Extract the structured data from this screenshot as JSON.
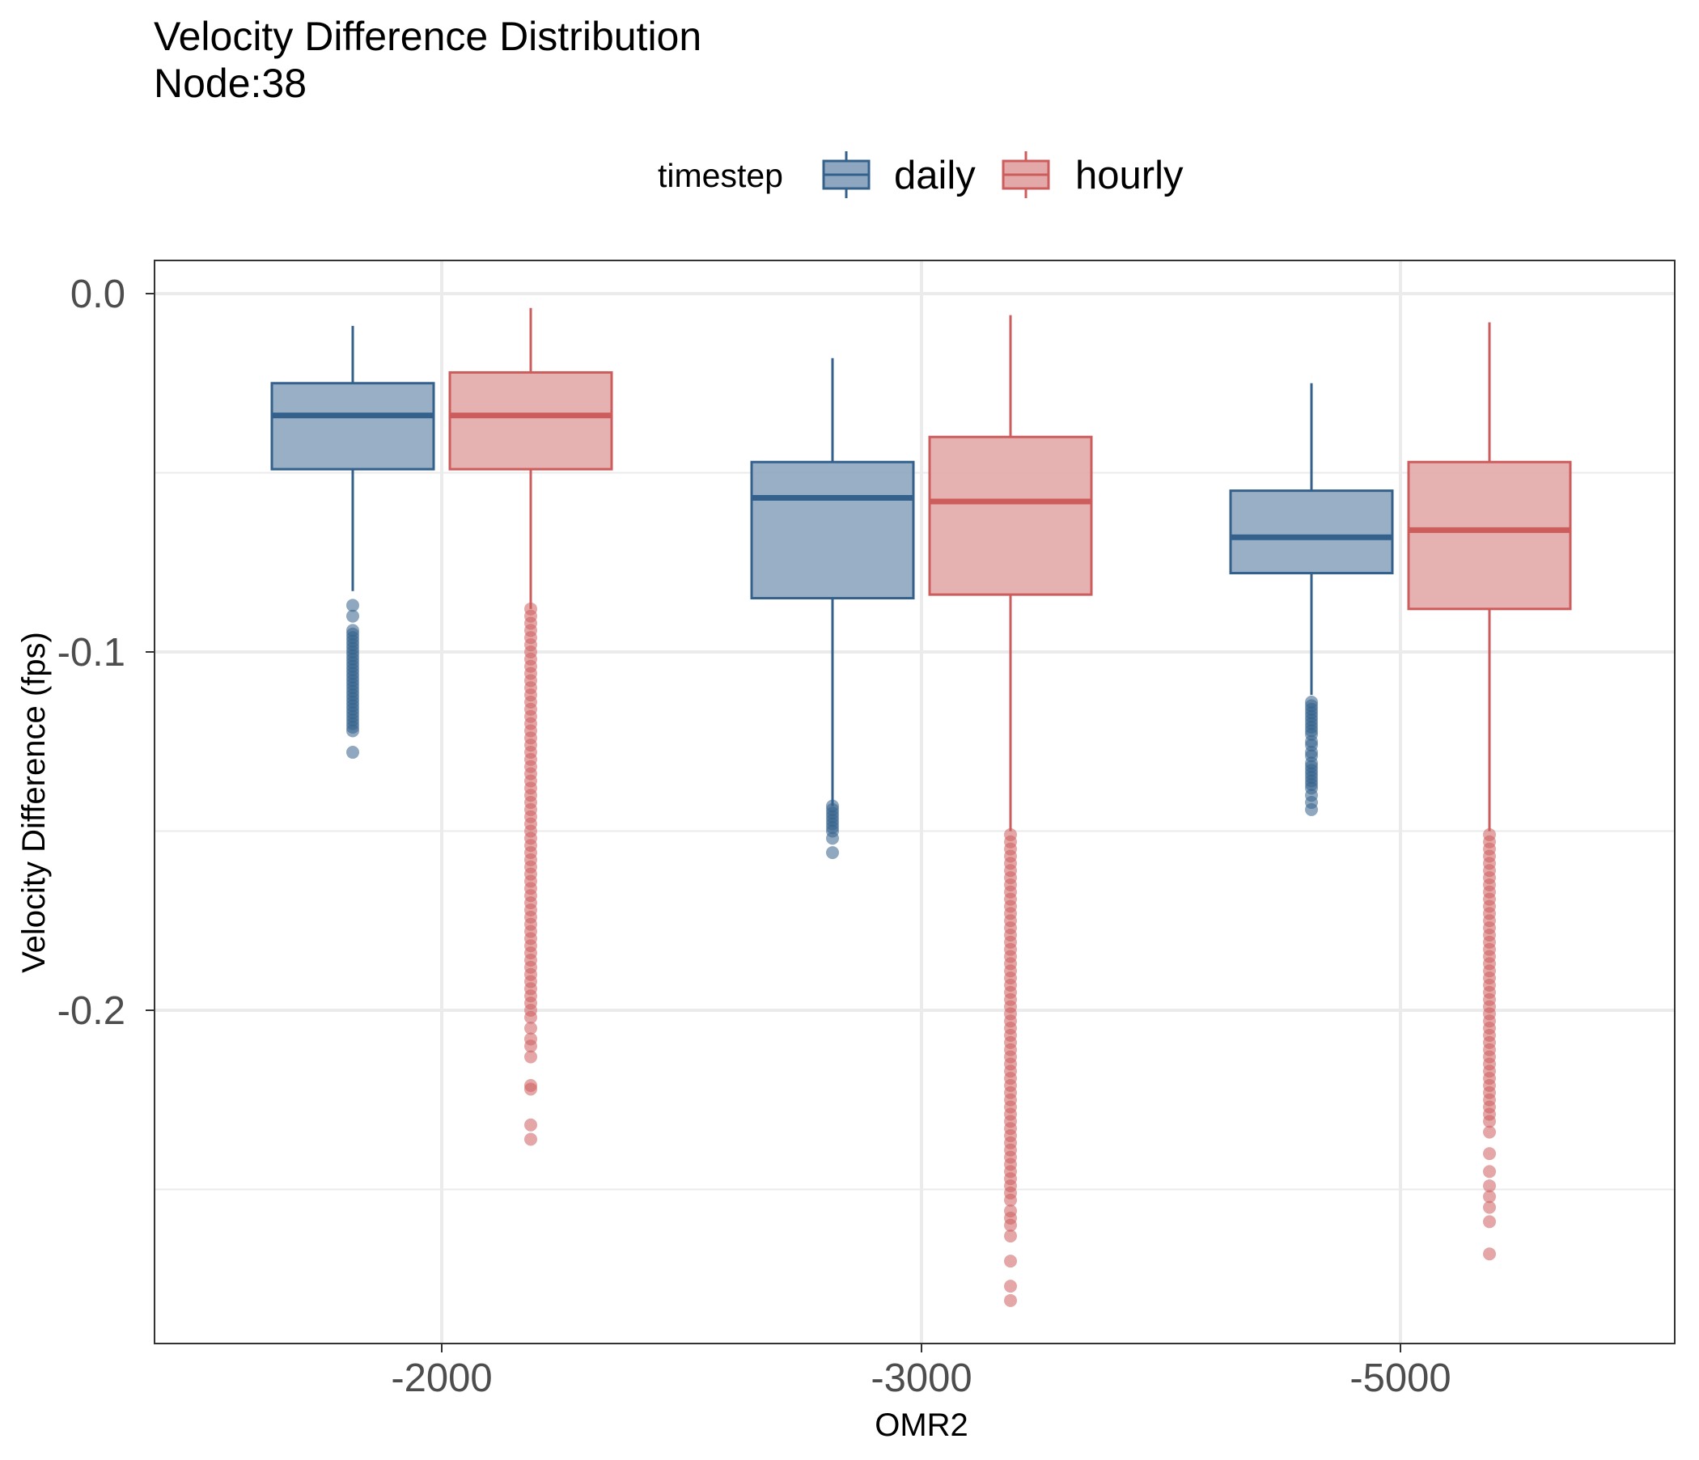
{
  "chart_data": {
    "type": "box",
    "title": "Velocity Difference Distribution",
    "subtitle": "Node:38",
    "xlabel": "OMR2",
    "ylabel": "Velocity Difference (fps)",
    "categories": [
      "-2000",
      "-3000",
      "-5000"
    ],
    "y_ticks": [
      "0.0",
      "-0.1",
      "-0.2"
    ],
    "ylim": [
      -0.293,
      0.009
    ],
    "grid": true,
    "legend": {
      "title": "timestep",
      "position": "top",
      "entries": [
        "daily",
        "hourly"
      ]
    },
    "series": [
      {
        "name": "daily",
        "color": "#33618b",
        "fill": "#8ea6c0",
        "boxes": [
          {
            "category": "-2000",
            "whisker_high": -0.009,
            "q3": -0.025,
            "median": -0.034,
            "q1": -0.049,
            "whisker_low": -0.083,
            "outliers": [
              -0.087,
              -0.09,
              -0.094,
              -0.095,
              -0.096,
              -0.097,
              -0.098,
              -0.099,
              -0.1,
              -0.101,
              -0.102,
              -0.103,
              -0.104,
              -0.105,
              -0.106,
              -0.107,
              -0.108,
              -0.109,
              -0.11,
              -0.111,
              -0.112,
              -0.113,
              -0.114,
              -0.115,
              -0.116,
              -0.117,
              -0.118,
              -0.119,
              -0.12,
              -0.121,
              -0.122,
              -0.128
            ]
          },
          {
            "category": "-3000",
            "whisker_high": -0.018,
            "q3": -0.047,
            "median": -0.057,
            "q1": -0.085,
            "whisker_low": -0.143,
            "outliers": [
              -0.143,
              -0.144,
              -0.145,
              -0.146,
              -0.147,
              -0.148,
              -0.149,
              -0.15,
              -0.152,
              -0.156
            ]
          },
          {
            "category": "-5000",
            "whisker_high": -0.025,
            "q3": -0.055,
            "median": -0.068,
            "q1": -0.078,
            "whisker_low": -0.112,
            "outliers": [
              -0.114,
              -0.115,
              -0.116,
              -0.117,
              -0.118,
              -0.119,
              -0.12,
              -0.121,
              -0.122,
              -0.123,
              -0.125,
              -0.126,
              -0.128,
              -0.129,
              -0.131,
              -0.132,
              -0.133,
              -0.134,
              -0.135,
              -0.136,
              -0.137,
              -0.138,
              -0.14,
              -0.142,
              -0.144
            ]
          }
        ]
      },
      {
        "name": "hourly",
        "color": "#cd5c5c",
        "fill": "#e3a9a9",
        "boxes": [
          {
            "category": "-2000",
            "whisker_high": -0.004,
            "q3": -0.022,
            "median": -0.034,
            "q1": -0.049,
            "whisker_low": -0.088,
            "outliers": [
              -0.088,
              -0.09,
              -0.092,
              -0.094,
              -0.096,
              -0.098,
              -0.1,
              -0.102,
              -0.104,
              -0.106,
              -0.108,
              -0.11,
              -0.112,
              -0.114,
              -0.116,
              -0.118,
              -0.12,
              -0.122,
              -0.124,
              -0.126,
              -0.128,
              -0.13,
              -0.132,
              -0.134,
              -0.136,
              -0.138,
              -0.14,
              -0.142,
              -0.144,
              -0.146,
              -0.148,
              -0.15,
              -0.152,
              -0.154,
              -0.156,
              -0.158,
              -0.16,
              -0.162,
              -0.164,
              -0.166,
              -0.168,
              -0.17,
              -0.172,
              -0.174,
              -0.176,
              -0.178,
              -0.18,
              -0.182,
              -0.184,
              -0.186,
              -0.188,
              -0.19,
              -0.192,
              -0.194,
              -0.196,
              -0.198,
              -0.2,
              -0.202,
              -0.205,
              -0.208,
              -0.21,
              -0.213,
              -0.221,
              -0.222,
              -0.232,
              -0.236
            ]
          },
          {
            "category": "-3000",
            "whisker_high": -0.006,
            "q3": -0.04,
            "median": -0.058,
            "q1": -0.084,
            "whisker_low": -0.15,
            "outliers": [
              -0.151,
              -0.153,
              -0.155,
              -0.157,
              -0.159,
              -0.161,
              -0.163,
              -0.165,
              -0.167,
              -0.169,
              -0.171,
              -0.173,
              -0.175,
              -0.177,
              -0.179,
              -0.181,
              -0.183,
              -0.185,
              -0.187,
              -0.189,
              -0.191,
              -0.193,
              -0.195,
              -0.197,
              -0.199,
              -0.201,
              -0.203,
              -0.205,
              -0.207,
              -0.209,
              -0.211,
              -0.213,
              -0.215,
              -0.217,
              -0.219,
              -0.221,
              -0.223,
              -0.225,
              -0.227,
              -0.229,
              -0.231,
              -0.233,
              -0.235,
              -0.237,
              -0.239,
              -0.241,
              -0.243,
              -0.245,
              -0.247,
              -0.249,
              -0.251,
              -0.253,
              -0.256,
              -0.258,
              -0.26,
              -0.263,
              -0.27,
              -0.277,
              -0.281
            ]
          },
          {
            "category": "-5000",
            "whisker_high": -0.008,
            "q3": -0.047,
            "median": -0.066,
            "q1": -0.088,
            "whisker_low": -0.15,
            "outliers": [
              -0.151,
              -0.153,
              -0.155,
              -0.157,
              -0.159,
              -0.161,
              -0.163,
              -0.165,
              -0.167,
              -0.169,
              -0.171,
              -0.173,
              -0.175,
              -0.177,
              -0.179,
              -0.181,
              -0.183,
              -0.185,
              -0.187,
              -0.189,
              -0.191,
              -0.193,
              -0.195,
              -0.197,
              -0.199,
              -0.201,
              -0.203,
              -0.205,
              -0.207,
              -0.209,
              -0.211,
              -0.213,
              -0.215,
              -0.217,
              -0.219,
              -0.221,
              -0.223,
              -0.225,
              -0.227,
              -0.229,
              -0.231,
              -0.234,
              -0.24,
              -0.245,
              -0.249,
              -0.252,
              -0.255,
              -0.259,
              -0.268
            ]
          }
        ]
      }
    ]
  }
}
